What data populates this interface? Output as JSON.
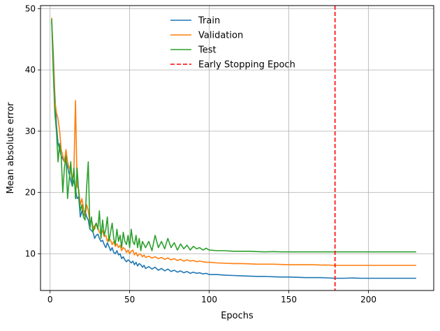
{
  "chart_data": {
    "type": "line",
    "xlabel": "Epochs",
    "ylabel": "Mean absolute error",
    "xlim": [
      -6,
      241
    ],
    "ylim": [
      4,
      50.5
    ],
    "xticks": [
      0,
      50,
      100,
      150,
      200
    ],
    "yticks": [
      10,
      20,
      30,
      40,
      50
    ],
    "grid": true,
    "legend_position": "upper-center",
    "series": [
      {
        "name": "Train",
        "color": "#1f77b4",
        "x": [
          1,
          2,
          3,
          4,
          5,
          6,
          7,
          8,
          9,
          10,
          11,
          12,
          13,
          14,
          15,
          16,
          17,
          18,
          19,
          20,
          21,
          22,
          23,
          24,
          25,
          26,
          27,
          28,
          29,
          30,
          31,
          32,
          33,
          34,
          35,
          36,
          37,
          38,
          39,
          40,
          41,
          42,
          43,
          44,
          45,
          46,
          47,
          48,
          49,
          50,
          51,
          52,
          53,
          54,
          55,
          56,
          57,
          58,
          59,
          60,
          62,
          64,
          66,
          68,
          70,
          72,
          74,
          76,
          78,
          80,
          82,
          84,
          86,
          88,
          90,
          92,
          94,
          96,
          98,
          100,
          105,
          110,
          115,
          120,
          125,
          130,
          135,
          140,
          145,
          150,
          155,
          160,
          165,
          170,
          175,
          179,
          185,
          190,
          195,
          200,
          205,
          210,
          215,
          220,
          225,
          230
        ],
        "values": [
          47.8,
          43,
          36,
          31,
          28,
          27,
          26,
          25.5,
          25,
          25.2,
          24.2,
          23,
          22,
          21,
          22,
          20.5,
          19,
          19.3,
          16,
          17,
          16.2,
          17,
          16,
          15.5,
          14,
          13.8,
          13.5,
          12.5,
          13,
          13.2,
          12.5,
          12,
          12.2,
          11.5,
          11,
          11.8,
          11.2,
          10.5,
          11,
          10.2,
          10,
          10.5,
          9.8,
          10,
          9.2,
          9.5,
          9,
          8.7,
          9,
          8.8,
          8.5,
          8.8,
          8.2,
          8.6,
          8,
          8.4,
          8.2,
          7.8,
          8.1,
          7.6,
          7.9,
          7.5,
          7.8,
          7.3,
          7.6,
          7.2,
          7.5,
          7.1,
          7.3,
          7,
          7.2,
          6.9,
          7.1,
          6.8,
          7,
          6.8,
          6.9,
          6.7,
          6.8,
          6.6,
          6.6,
          6.5,
          6.45,
          6.4,
          6.35,
          6.3,
          6.3,
          6.25,
          6.2,
          6.2,
          6.15,
          6.1,
          6.1,
          6.1,
          6.05,
          6.0,
          6.0,
          6.05,
          6.0,
          6.0,
          6.0,
          6.0,
          6.0,
          6.0,
          6.0,
          6.0
        ]
      },
      {
        "name": "Validation",
        "color": "#ff7f0e",
        "x": [
          1,
          2,
          3,
          4,
          5,
          6,
          7,
          8,
          9,
          10,
          11,
          12,
          13,
          14,
          15,
          16,
          17,
          18,
          19,
          20,
          21,
          22,
          23,
          24,
          25,
          26,
          27,
          28,
          29,
          30,
          31,
          32,
          33,
          34,
          35,
          36,
          37,
          38,
          39,
          40,
          41,
          42,
          43,
          44,
          45,
          46,
          47,
          48,
          49,
          50,
          51,
          52,
          53,
          54,
          55,
          56,
          57,
          58,
          59,
          60,
          62,
          64,
          66,
          68,
          70,
          72,
          74,
          76,
          78,
          80,
          82,
          84,
          86,
          88,
          90,
          92,
          94,
          96,
          98,
          100,
          105,
          110,
          115,
          120,
          125,
          130,
          135,
          140,
          145,
          150,
          155,
          160,
          165,
          170,
          175,
          179,
          185,
          190,
          195,
          200,
          205,
          210,
          215,
          220,
          225,
          230
        ],
        "values": [
          48.5,
          42,
          35,
          33,
          32,
          30,
          27,
          26,
          25,
          27,
          25,
          24,
          23.5,
          22,
          24,
          35,
          21,
          20.5,
          18,
          19,
          17.5,
          16,
          18,
          17,
          15,
          15.5,
          14.5,
          14,
          15,
          14.2,
          13.5,
          13.2,
          13.8,
          12.8,
          13,
          12,
          12.6,
          12.2,
          11.5,
          12,
          11.2,
          11.6,
          11,
          11.4,
          10.5,
          11,
          10.8,
          10.2,
          10.6,
          10,
          10.4,
          10.6,
          9.8,
          10.2,
          9.6,
          10,
          9.9,
          9.5,
          9.8,
          9.4,
          9.6,
          9.3,
          9.5,
          9.2,
          9.4,
          9.1,
          9.3,
          9,
          9.2,
          8.9,
          9.1,
          8.8,
          9,
          8.8,
          8.9,
          8.7,
          8.8,
          8.7,
          8.6,
          8.6,
          8.5,
          8.45,
          8.4,
          8.4,
          8.35,
          8.3,
          8.3,
          8.3,
          8.25,
          8.2,
          8.2,
          8.2,
          8.2,
          8.15,
          8.15,
          8.1,
          8.1,
          8.1,
          8.1,
          8.1,
          8.1,
          8.1,
          8.1,
          8.1,
          8.1,
          8.1
        ]
      },
      {
        "name": "Test",
        "color": "#2ca02c",
        "x": [
          1,
          2,
          3,
          4,
          5,
          6,
          7,
          8,
          9,
          10,
          11,
          12,
          13,
          14,
          15,
          16,
          17,
          18,
          19,
          20,
          21,
          22,
          23,
          24,
          25,
          26,
          27,
          28,
          29,
          30,
          31,
          32,
          33,
          34,
          35,
          36,
          37,
          38,
          39,
          40,
          41,
          42,
          43,
          44,
          45,
          46,
          47,
          48,
          49,
          50,
          51,
          52,
          53,
          54,
          55,
          56,
          57,
          58,
          59,
          60,
          62,
          64,
          66,
          68,
          70,
          72,
          74,
          76,
          78,
          80,
          82,
          84,
          86,
          88,
          90,
          92,
          94,
          96,
          98,
          100,
          105,
          110,
          115,
          120,
          125,
          130,
          135,
          140,
          145,
          150,
          155,
          160,
          165,
          170,
          175,
          179,
          185,
          190,
          195,
          200,
          205,
          210,
          215,
          220,
          225,
          230
        ],
        "values": [
          48.3,
          40,
          33,
          30,
          25,
          28,
          26,
          20,
          24,
          26,
          19,
          22,
          25,
          21,
          24,
          19,
          24,
          20,
          17,
          18,
          16,
          15.5,
          21,
          25,
          14,
          16,
          13.5,
          14.5,
          15,
          14,
          17,
          12.5,
          15.5,
          13,
          14,
          16,
          12,
          13.5,
          15,
          12.5,
          11.5,
          14,
          12,
          13,
          11,
          13.5,
          12,
          11.5,
          13,
          11,
          14,
          12,
          11.5,
          13,
          11,
          12.5,
          10.5,
          12,
          11.5,
          11,
          12,
          10.5,
          13,
          11,
          12,
          10.8,
          12.5,
          11,
          11.8,
          10.6,
          11.6,
          10.8,
          11.4,
          10.6,
          11.2,
          10.8,
          11,
          10.6,
          10.9,
          10.6,
          10.5,
          10.5,
          10.4,
          10.4,
          10.4,
          10.35,
          10.3,
          10.35,
          10.3,
          10.3,
          10.3,
          10.3,
          10.3,
          10.3,
          10.3,
          10.3,
          10.3,
          10.3,
          10.3,
          10.3,
          10.3,
          10.3,
          10.3,
          10.3,
          10.3,
          10.3
        ]
      },
      {
        "name": "Early Stopping Epoch",
        "color": "#ff0000",
        "style": "dashed",
        "vertical_x": 179
      }
    ]
  }
}
